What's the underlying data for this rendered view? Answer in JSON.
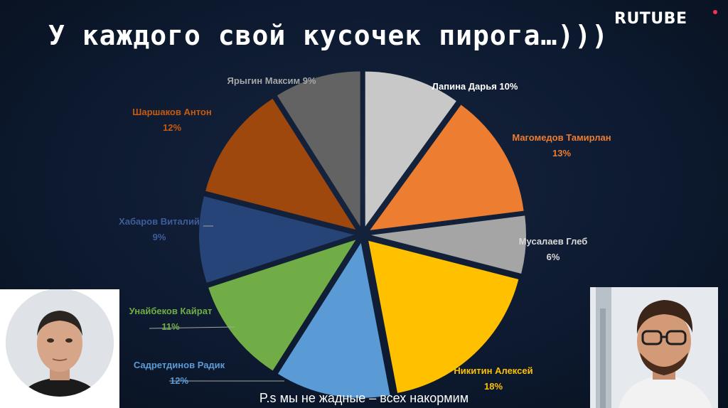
{
  "title": "У каждого свой кусочек пирога…)))",
  "logo": "RUTUBE",
  "caption": "P.s мы не жадные – всех накормим",
  "chart_data": {
    "type": "pie",
    "title": "",
    "slices": [
      {
        "name": "Лапина Дарья",
        "value": 10,
        "label": "10%",
        "color": "#c8c8c8",
        "text_color": "#ffffff"
      },
      {
        "name": "Магомедов Тамирлан",
        "value": 13,
        "label": "13%",
        "color": "#ed7d31",
        "text_color": "#ed7d31"
      },
      {
        "name": "Мусалаев Глеб",
        "value": 6,
        "label": "6%",
        "color": "#a5a5a5",
        "text_color": "#d9d9d9"
      },
      {
        "name": "Никитин Алексей",
        "value": 18,
        "label": "18%",
        "color": "#ffc000",
        "text_color": "#ffc000"
      },
      {
        "name": "Садретдинов Радик",
        "value": 12,
        "label": "12%",
        "color": "#5b9bd5",
        "text_color": "#5b9bd5"
      },
      {
        "name": "Унайбеков Кайрат",
        "value": 11,
        "label": "11%",
        "color": "#70ad47",
        "text_color": "#70ad47"
      },
      {
        "name": "Хабаров Виталий",
        "value": 9,
        "label": "9%",
        "color": "#264478",
        "text_color": "#3e5d9c"
      },
      {
        "name": "Шаршаков Антон",
        "value": 12,
        "label": "12%",
        "color": "#9e480e",
        "text_color": "#c55a11"
      },
      {
        "name": "Ярыгин Максим",
        "value": 9,
        "label": "9%",
        "color": "#636363",
        "text_color": "#a6a6a6"
      }
    ]
  }
}
